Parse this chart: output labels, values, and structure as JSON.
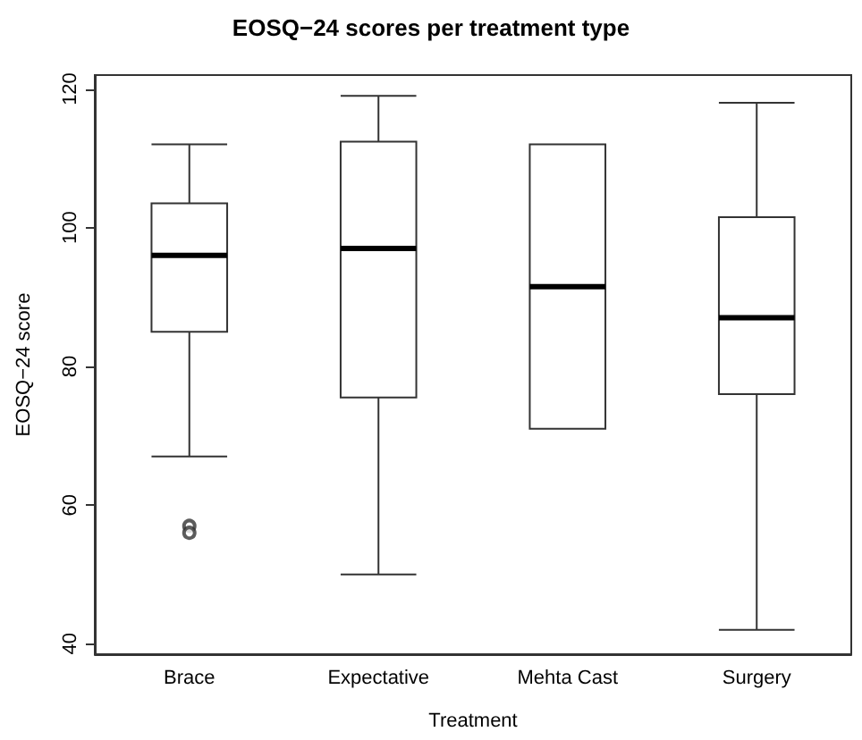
{
  "chart_data": {
    "type": "box",
    "title": "EOSQ−24 scores per treatment type",
    "xlabel": "Treatment",
    "ylabel": "EOSQ−24 score",
    "categories": [
      "Brace",
      "Expectative",
      "Mehta Cast",
      "Surgery"
    ],
    "boxes": [
      {
        "low": 67,
        "q1": 85,
        "median": 96,
        "q3": 103.5,
        "high": 112,
        "outliers": [
          57,
          56
        ]
      },
      {
        "low": 50,
        "q1": 75.5,
        "median": 97,
        "q3": 112.4,
        "high": 119
      },
      {
        "low": 71,
        "q1": 71,
        "median": 91.5,
        "q3": 112,
        "high": 112
      },
      {
        "low": 42,
        "q1": 76,
        "median": 87,
        "q3": 101.5,
        "high": 118
      }
    ],
    "ylim": [
      38.5,
      122
    ],
    "yticks": [
      40,
      60,
      80,
      100,
      120
    ],
    "grid": false
  }
}
